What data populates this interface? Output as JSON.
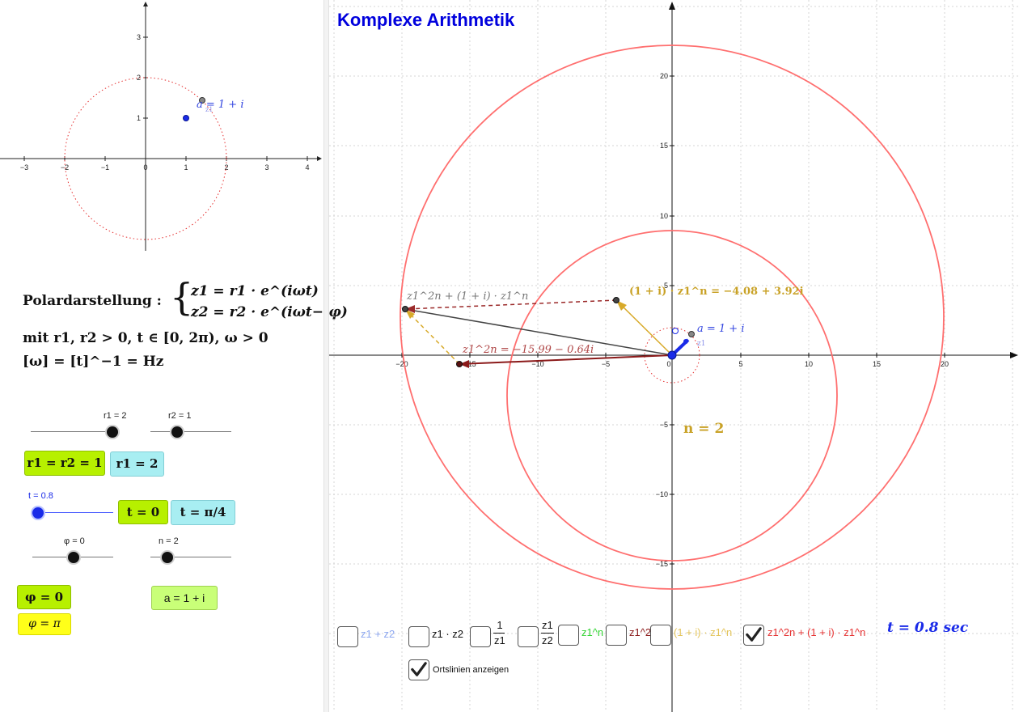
{
  "title": "Komplexe Arithmetik",
  "mini_graph": {
    "x_ticks": [
      "−3",
      "−2",
      "−1",
      "0",
      "1",
      "2",
      "3",
      "4"
    ],
    "y_ticks": [
      "1",
      "2",
      "3"
    ],
    "point_label": "a = 1 + i",
    "point_sub_label": "z1"
  },
  "formula": {
    "line1_prefix": "Polardarstellung :",
    "z1_eq": "z1 = r1 · e^(iωt)",
    "z2_eq": "z2 = r2 · e^(iωt−iφ)",
    "line2": "mit r1, r2 > 0,  t ∈ [0, 2π),  ω > 0",
    "line3": "[ω] = [t]^−1 = Hz"
  },
  "sliders": {
    "r1_label": "r1 = 2",
    "r2_label": "r2 = 1",
    "t_label": "t = 0.8",
    "phi_label": "φ = 0",
    "n_label": "n = 2"
  },
  "buttons": {
    "r_equal": "r1 = r2 = 1",
    "r1_two": "r1 = 2",
    "t_zero": "t = 0",
    "t_pi4": "t = π/4",
    "phi_zero": "φ = 0",
    "phi_pi": "φ = π",
    "a_value": "a = 1 + i"
  },
  "main_graph": {
    "x_ticks": [
      "−20",
      "−15",
      "−10",
      "−5",
      "0",
      "5",
      "10",
      "15",
      "20"
    ],
    "y_ticks": [
      "20",
      "15",
      "10",
      "5",
      "−5",
      "−10",
      "−15"
    ],
    "label_z1_2n_plus": "z1^2n + (1 + i) · z1^n",
    "label_1i_z1n": "(1 + i) · z1^n = −4.08 + 3.92i",
    "label_z1_2n": "z1^2n = −15.99 − 0.64i",
    "label_a": "a = 1 + i",
    "label_z1": "z1",
    "n_display": "n = 2",
    "t_display": "t = 0.8 sec"
  },
  "checkboxes": {
    "sum": "z1 + z2",
    "product": "z1 · z2",
    "inverse_num": "1",
    "inverse_den": "z1",
    "quot_num": "z1",
    "quot_den": "z2",
    "z1n": "z1^n",
    "z12n": "z1^2n",
    "one_i_z1n": "(1 + i) · z1^n",
    "combo": "z1^2n + (1 + i) · z1^n",
    "combo_checked": true,
    "ortslinien": "Ortslinien anzeigen",
    "ortslinien_checked": true
  },
  "colors": {
    "title": "#0000dd",
    "circle": "#ff6666",
    "gold": "#c9a227",
    "darkred": "#8b1a1a",
    "blue": "#1a2be8",
    "green_btn": "#b7f000",
    "cyan_btn": "#a8eef2",
    "yellow_btn": "#ffff19"
  }
}
